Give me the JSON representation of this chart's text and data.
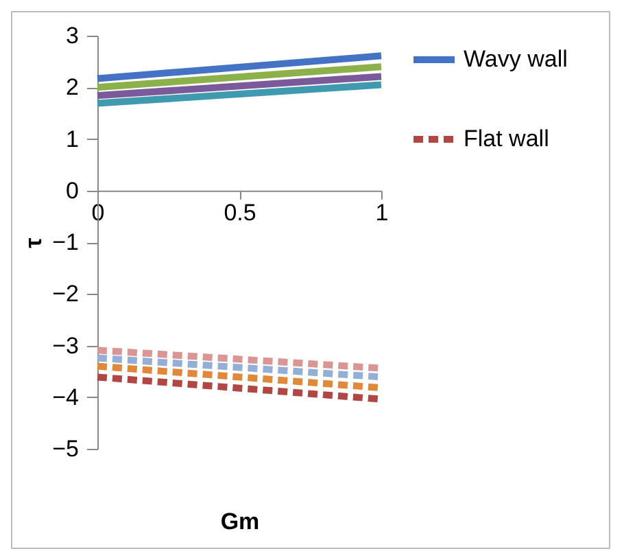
{
  "chart_data": {
    "type": "line",
    "xlabel": "Gm",
    "ylabel": "τ",
    "x": [
      0,
      1
    ],
    "xlim": [
      0,
      1
    ],
    "xticks": [
      0,
      0.5,
      1
    ],
    "ylim": [
      -5,
      3
    ],
    "yticks": [
      -5,
      -4,
      -3,
      -2,
      -1,
      0,
      1,
      2,
      3
    ],
    "grid": false,
    "legend": "right",
    "marker": "none",
    "series": [
      {
        "name": "Wavy wall",
        "color": "#4472c4",
        "line_style": "solid",
        "values": [
          2.17,
          2.61
        ]
      },
      {
        "color": "#8cb04a",
        "line_style": "solid",
        "values": [
          2.0,
          2.4
        ]
      },
      {
        "color": "#7a5a9a",
        "line_style": "solid",
        "values": [
          1.84,
          2.21
        ]
      },
      {
        "color": "#3f9ab0",
        "line_style": "solid",
        "values": [
          1.69,
          2.05
        ]
      },
      {
        "name": "Flat wall",
        "color": "#b04744",
        "line_style": "dashed",
        "values": [
          -3.61,
          -4.04
        ]
      },
      {
        "color": "#e0893b",
        "line_style": "dashed",
        "values": [
          -3.4,
          -3.82
        ]
      },
      {
        "color": "#94afd6",
        "line_style": "dashed",
        "values": [
          -3.24,
          -3.61
        ]
      },
      {
        "color": "#d99694",
        "line_style": "dashed",
        "values": [
          -3.09,
          -3.44
        ]
      }
    ]
  }
}
